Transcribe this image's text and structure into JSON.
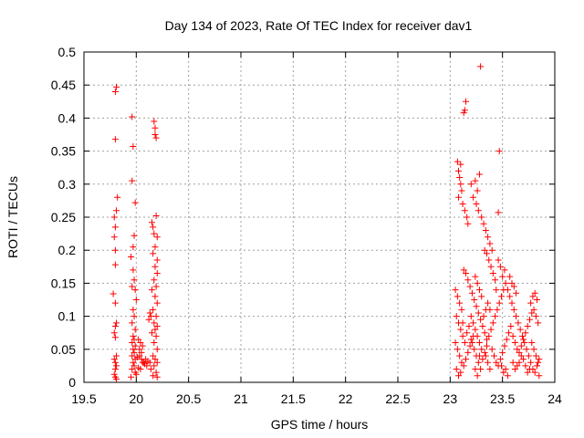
{
  "chart_data": {
    "type": "scatter",
    "title": "Day 134 of 2023, Rate Of TEC Index for receiver dav1",
    "xlabel": "GPS time / hours",
    "ylabel": "ROTI / TECUs",
    "xlim": [
      19.5,
      24
    ],
    "ylim": [
      0,
      0.5
    ],
    "x_ticks": [
      "19.5",
      "20",
      "20.5",
      "21",
      "21.5",
      "22",
      "22.5",
      "23",
      "23.5",
      "24"
    ],
    "y_ticks": [
      "0",
      "0.05",
      "0.1",
      "0.15",
      "0.2",
      "0.25",
      "0.3",
      "0.35",
      "0.4",
      "0.45",
      "0.5"
    ],
    "grid": true,
    "marker": "+",
    "series_color": "#ff0000",
    "series": [
      {
        "points": [
          [
            19.8,
            0.44
          ],
          [
            19.81,
            0.447
          ],
          [
            19.8,
            0.368
          ],
          [
            19.82,
            0.28
          ],
          [
            19.81,
            0.26
          ],
          [
            19.79,
            0.25
          ],
          [
            19.8,
            0.235
          ],
          [
            19.79,
            0.22
          ],
          [
            19.8,
            0.2
          ],
          [
            19.8,
            0.178
          ],
          [
            19.78,
            0.134
          ],
          [
            19.8,
            0.12
          ],
          [
            19.81,
            0.09
          ],
          [
            19.8,
            0.085
          ],
          [
            19.79,
            0.075
          ],
          [
            19.8,
            0.068
          ],
          [
            19.81,
            0.04
          ],
          [
            19.79,
            0.035
          ],
          [
            19.8,
            0.03
          ],
          [
            19.81,
            0.025
          ],
          [
            19.8,
            0.02
          ],
          [
            19.79,
            0.012
          ],
          [
            19.8,
            0.008
          ],
          [
            19.81,
            0.005
          ],
          [
            19.96,
            0.402
          ],
          [
            19.97,
            0.357
          ],
          [
            19.96,
            0.305
          ],
          [
            19.99,
            0.272
          ],
          [
            19.98,
            0.222
          ],
          [
            19.97,
            0.205
          ],
          [
            19.95,
            0.19
          ],
          [
            19.97,
            0.17
          ],
          [
            19.98,
            0.155
          ],
          [
            19.96,
            0.145
          ],
          [
            19.99,
            0.14
          ],
          [
            20.0,
            0.125
          ],
          [
            19.97,
            0.11
          ],
          [
            19.98,
            0.1
          ],
          [
            19.96,
            0.09
          ],
          [
            19.99,
            0.08
          ],
          [
            19.97,
            0.07
          ],
          [
            19.98,
            0.065
          ],
          [
            19.96,
            0.06
          ],
          [
            19.99,
            0.055
          ],
          [
            19.97,
            0.05
          ],
          [
            19.98,
            0.045
          ],
          [
            19.96,
            0.04
          ],
          [
            19.99,
            0.035
          ],
          [
            19.97,
            0.03
          ],
          [
            19.98,
            0.025
          ],
          [
            19.96,
            0.02
          ],
          [
            19.99,
            0.015
          ],
          [
            20.0,
            0.012
          ],
          [
            19.95,
            0.008
          ],
          [
            20.02,
            0.065
          ],
          [
            20.04,
            0.06
          ],
          [
            20.06,
            0.055
          ],
          [
            20.03,
            0.04
          ],
          [
            20.05,
            0.035
          ],
          [
            20.07,
            0.03
          ],
          [
            20.08,
            0.028
          ],
          [
            20.1,
            0.025
          ],
          [
            20.02,
            0.022
          ],
          [
            20.04,
            0.02
          ],
          [
            20.06,
            0.03
          ],
          [
            20.09,
            0.035
          ],
          [
            20.11,
            0.032
          ],
          [
            20.03,
            0.05
          ],
          [
            20.05,
            0.045
          ],
          [
            20.01,
            0.038
          ],
          [
            20.17,
            0.395
          ],
          [
            20.18,
            0.385
          ],
          [
            20.18,
            0.375
          ],
          [
            20.19,
            0.37
          ],
          [
            20.15,
            0.242
          ],
          [
            20.16,
            0.235
          ],
          [
            20.17,
            0.225
          ],
          [
            20.19,
            0.252
          ],
          [
            20.2,
            0.22
          ],
          [
            20.18,
            0.205
          ],
          [
            20.16,
            0.195
          ],
          [
            20.2,
            0.185
          ],
          [
            20.18,
            0.175
          ],
          [
            20.2,
            0.165
          ],
          [
            20.17,
            0.155
          ],
          [
            20.19,
            0.145
          ],
          [
            20.15,
            0.14
          ],
          [
            20.18,
            0.13
          ],
          [
            20.2,
            0.12
          ],
          [
            20.16,
            0.11
          ],
          [
            20.19,
            0.1
          ],
          [
            20.17,
            0.09
          ],
          [
            20.2,
            0.085
          ],
          [
            20.18,
            0.08
          ],
          [
            20.15,
            0.075
          ],
          [
            20.19,
            0.07
          ],
          [
            20.17,
            0.06
          ],
          [
            20.2,
            0.05
          ],
          [
            20.16,
            0.04
          ],
          [
            20.18,
            0.035
          ],
          [
            20.2,
            0.03
          ],
          [
            20.17,
            0.025
          ],
          [
            20.19,
            0.015
          ],
          [
            20.2,
            0.008
          ],
          [
            20.16,
            0.01
          ],
          [
            20.14,
            0.1
          ],
          [
            20.13,
            0.105
          ],
          [
            20.12,
            0.095
          ],
          [
            20.14,
            0.02
          ],
          [
            20.13,
            0.03
          ],
          [
            23.29,
            0.478
          ],
          [
            23.15,
            0.425
          ],
          [
            23.13,
            0.408
          ],
          [
            23.14,
            0.412
          ],
          [
            23.47,
            0.35
          ],
          [
            23.07,
            0.334
          ],
          [
            23.1,
            0.33
          ],
          [
            23.08,
            0.32
          ],
          [
            23.09,
            0.31
          ],
          [
            23.1,
            0.3
          ],
          [
            23.11,
            0.29
          ],
          [
            23.08,
            0.28
          ],
          [
            23.12,
            0.27
          ],
          [
            23.14,
            0.26
          ],
          [
            23.16,
            0.25
          ],
          [
            23.17,
            0.24
          ],
          [
            23.2,
            0.3
          ],
          [
            23.22,
            0.28
          ],
          [
            23.25,
            0.27
          ],
          [
            23.27,
            0.26
          ],
          [
            23.24,
            0.305
          ],
          [
            23.26,
            0.29
          ],
          [
            23.28,
            0.315
          ],
          [
            23.3,
            0.25
          ],
          [
            23.32,
            0.24
          ],
          [
            23.34,
            0.23
          ],
          [
            23.36,
            0.22
          ],
          [
            23.38,
            0.21
          ],
          [
            23.4,
            0.2
          ],
          [
            23.46,
            0.257
          ],
          [
            23.35,
            0.195
          ],
          [
            23.37,
            0.185
          ],
          [
            23.39,
            0.175
          ],
          [
            23.41,
            0.165
          ],
          [
            23.43,
            0.155
          ],
          [
            23.33,
            0.2
          ],
          [
            23.13,
            0.17
          ],
          [
            23.15,
            0.165
          ],
          [
            23.17,
            0.155
          ],
          [
            23.19,
            0.145
          ],
          [
            23.21,
            0.135
          ],
          [
            23.23,
            0.125
          ],
          [
            23.25,
            0.115
          ],
          [
            23.27,
            0.105
          ],
          [
            23.29,
            0.095
          ],
          [
            23.31,
            0.085
          ],
          [
            23.33,
            0.075
          ],
          [
            23.35,
            0.065
          ],
          [
            23.05,
            0.14
          ],
          [
            23.07,
            0.13
          ],
          [
            23.09,
            0.12
          ],
          [
            23.11,
            0.11
          ],
          [
            23.06,
            0.1
          ],
          [
            23.08,
            0.09
          ],
          [
            23.1,
            0.08
          ],
          [
            23.12,
            0.07
          ],
          [
            23.05,
            0.06
          ],
          [
            23.07,
            0.05
          ],
          [
            23.09,
            0.04
          ],
          [
            23.11,
            0.03
          ],
          [
            23.06,
            0.02
          ],
          [
            23.08,
            0.01
          ],
          [
            23.1,
            0.015
          ],
          [
            23.13,
            0.025
          ],
          [
            23.15,
            0.035
          ],
          [
            23.17,
            0.045
          ],
          [
            23.19,
            0.055
          ],
          [
            23.21,
            0.06
          ],
          [
            23.23,
            0.05
          ],
          [
            23.25,
            0.04
          ],
          [
            23.27,
            0.03
          ],
          [
            23.29,
            0.02
          ],
          [
            23.31,
            0.035
          ],
          [
            23.33,
            0.045
          ],
          [
            23.35,
            0.055
          ],
          [
            23.37,
            0.07
          ],
          [
            23.39,
            0.08
          ],
          [
            23.41,
            0.09
          ],
          [
            23.43,
            0.1
          ],
          [
            23.45,
            0.11
          ],
          [
            23.47,
            0.12
          ],
          [
            23.49,
            0.13
          ],
          [
            23.51,
            0.14
          ],
          [
            23.53,
            0.15
          ],
          [
            23.55,
            0.14
          ],
          [
            23.57,
            0.13
          ],
          [
            23.59,
            0.12
          ],
          [
            23.61,
            0.11
          ],
          [
            23.63,
            0.1
          ],
          [
            23.65,
            0.09
          ],
          [
            23.67,
            0.08
          ],
          [
            23.69,
            0.07
          ],
          [
            23.71,
            0.06
          ],
          [
            23.73,
            0.05
          ],
          [
            23.75,
            0.04
          ],
          [
            23.77,
            0.03
          ],
          [
            23.79,
            0.02
          ],
          [
            23.81,
            0.015
          ],
          [
            23.83,
            0.025
          ],
          [
            23.85,
            0.035
          ],
          [
            23.4,
            0.05
          ],
          [
            23.42,
            0.04
          ],
          [
            23.44,
            0.03
          ],
          [
            23.46,
            0.025
          ],
          [
            23.48,
            0.035
          ],
          [
            23.5,
            0.045
          ],
          [
            23.52,
            0.055
          ],
          [
            23.54,
            0.065
          ],
          [
            23.56,
            0.075
          ],
          [
            23.58,
            0.085
          ],
          [
            23.6,
            0.07
          ],
          [
            23.62,
            0.06
          ],
          [
            23.64,
            0.05
          ],
          [
            23.66,
            0.045
          ],
          [
            23.68,
            0.055
          ],
          [
            23.7,
            0.065
          ],
          [
            23.72,
            0.075
          ],
          [
            23.74,
            0.085
          ],
          [
            23.76,
            0.095
          ],
          [
            23.78,
            0.105
          ],
          [
            23.8,
            0.11
          ],
          [
            23.82,
            0.1
          ],
          [
            23.84,
            0.09
          ],
          [
            23.79,
            0.13
          ],
          [
            23.81,
            0.135
          ],
          [
            23.83,
            0.125
          ],
          [
            23.77,
            0.12
          ],
          [
            23.57,
            0.16
          ],
          [
            23.59,
            0.15
          ],
          [
            23.61,
            0.145
          ],
          [
            23.63,
            0.135
          ],
          [
            23.52,
            0.17
          ],
          [
            23.5,
            0.16
          ],
          [
            23.48,
            0.175
          ],
          [
            23.46,
            0.185
          ],
          [
            23.44,
            0.14
          ],
          [
            23.36,
            0.12
          ],
          [
            23.38,
            0.11
          ],
          [
            23.2,
            0.1
          ],
          [
            23.22,
            0.09
          ],
          [
            23.24,
            0.08
          ],
          [
            23.26,
            0.07
          ],
          [
            23.28,
            0.06
          ],
          [
            23.3,
            0.05
          ],
          [
            23.34,
            0.04
          ],
          [
            23.36,
            0.03
          ],
          [
            23.38,
            0.02
          ],
          [
            23.6,
            0.03
          ],
          [
            23.62,
            0.02
          ],
          [
            23.64,
            0.025
          ],
          [
            23.66,
            0.03
          ],
          [
            23.68,
            0.04
          ],
          [
            23.7,
            0.035
          ],
          [
            23.72,
            0.025
          ],
          [
            23.74,
            0.015
          ],
          [
            23.76,
            0.02
          ],
          [
            23.78,
            0.06
          ],
          [
            23.8,
            0.05
          ],
          [
            23.82,
            0.04
          ],
          [
            23.84,
            0.03
          ],
          [
            23.85,
            0.01
          ],
          [
            23.55,
            0.01
          ],
          [
            23.53,
            0.02
          ],
          [
            23.51,
            0.015
          ],
          [
            23.49,
            0.025
          ],
          [
            23.14,
            0.06
          ],
          [
            23.16,
            0.075
          ],
          [
            23.18,
            0.085
          ],
          [
            23.12,
            0.09
          ],
          [
            23.2,
            0.065
          ],
          [
            23.22,
            0.07
          ],
          [
            23.24,
            0.02
          ],
          [
            23.26,
            0.01
          ],
          [
            23.28,
            0.04
          ],
          [
            23.32,
            0.1
          ],
          [
            23.34,
            0.11
          ],
          [
            23.3,
            0.13
          ],
          [
            23.28,
            0.14
          ],
          [
            23.26,
            0.15
          ],
          [
            23.24,
            0.16
          ]
        ]
      }
    ]
  }
}
